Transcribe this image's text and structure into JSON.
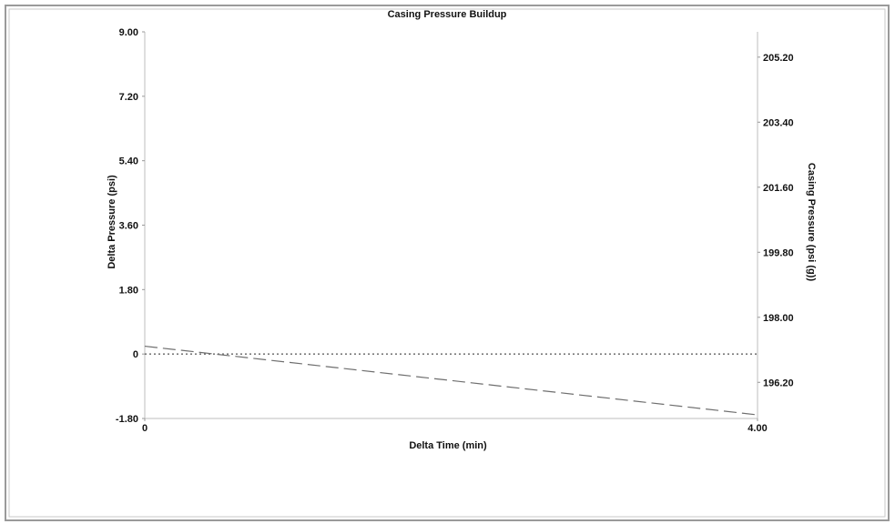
{
  "chart_data": {
    "type": "line",
    "title": "Casing Pressure Buildup",
    "xlabel": "Delta Time (min)",
    "ylabel_left": "Delta Pressure (psi)",
    "ylabel_right": "Casing Pressure (psi (g))",
    "x_ticks": [
      "0",
      "4.00"
    ],
    "y_left_ticks": [
      "9.00",
      "7.20",
      "5.40",
      "3.60",
      "1.80",
      "0",
      "-1.80"
    ],
    "y_right_ticks": [
      "205.20",
      "203.40",
      "201.60",
      "199.80",
      "198.00",
      "196.20"
    ],
    "xlim": [
      0,
      4.0
    ],
    "ylim_left": [
      -1.8,
      9.0
    ],
    "ylim_right": [
      195.2,
      205.9
    ],
    "grid": false,
    "series": [
      {
        "axis": "left",
        "style": "dotted",
        "color": "#7a7a7a",
        "x": [
          0,
          4.0
        ],
        "y": [
          0,
          0
        ]
      },
      {
        "axis": "right",
        "style": "dashed",
        "color": "#6e6e6e",
        "x": [
          0,
          4.0
        ],
        "y": [
          197.2,
          195.3
        ]
      }
    ]
  }
}
